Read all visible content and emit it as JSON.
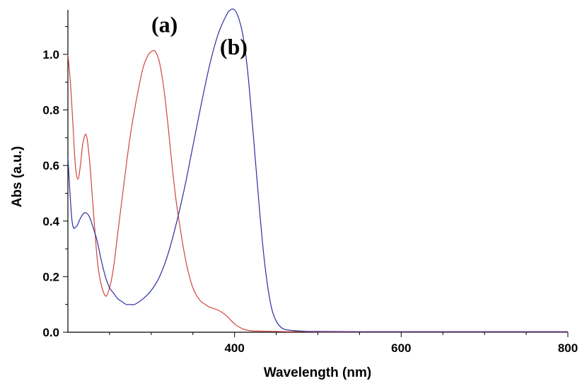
{
  "chart_data": {
    "type": "line",
    "xlabel": "Wavelength (nm)",
    "ylabel": "Abs (a.u.)",
    "xlim": [
      200,
      800
    ],
    "ylim": [
      0,
      1.16
    ],
    "xticks": [
      "400",
      "600",
      "800"
    ],
    "yticks": [
      "0.0",
      "0.2",
      "0.4",
      "0.6",
      "0.8",
      "1.0"
    ],
    "grid": false,
    "annotations": [
      {
        "text": "(a)",
        "x": 316,
        "y": 1.08
      },
      {
        "text": "(b)",
        "x": 399,
        "y": 1.0
      }
    ],
    "series": [
      {
        "color": "#d0453a",
        "x": [
          200,
          203,
          206,
          209,
          212,
          215,
          218,
          222,
          226,
          229,
          232,
          235,
          238,
          242,
          246,
          250,
          253,
          256,
          260,
          265,
          270,
          275,
          280,
          285,
          290,
          295,
          300,
          305,
          310,
          315,
          320,
          325,
          330,
          335,
          340,
          345,
          350,
          355,
          360,
          365,
          370,
          380,
          390,
          400,
          410,
          420,
          430,
          440,
          450,
          460,
          470,
          480,
          500,
          550,
          600,
          650,
          700,
          750,
          800
        ],
        "y": [
          1.0,
          0.9,
          0.75,
          0.6,
          0.55,
          0.6,
          0.68,
          0.71,
          0.62,
          0.5,
          0.38,
          0.27,
          0.2,
          0.15,
          0.13,
          0.16,
          0.2,
          0.26,
          0.36,
          0.48,
          0.6,
          0.71,
          0.8,
          0.88,
          0.95,
          0.99,
          1.01,
          1.01,
          0.97,
          0.88,
          0.75,
          0.6,
          0.47,
          0.37,
          0.28,
          0.21,
          0.16,
          0.13,
          0.11,
          0.1,
          0.09,
          0.08,
          0.06,
          0.03,
          0.012,
          0.005,
          0.004,
          0.003,
          0.003,
          0.002,
          0.002,
          0.002,
          0.001,
          0.001,
          0.001,
          0.001,
          0.001,
          0.001,
          0.001
        ]
      },
      {
        "color": "#2b2fa0",
        "x": [
          200,
          205,
          210,
          215,
          220,
          225,
          230,
          235,
          240,
          245,
          250,
          255,
          260,
          265,
          270,
          275,
          280,
          290,
          300,
          310,
          320,
          330,
          340,
          350,
          360,
          370,
          380,
          390,
          395,
          400,
          405,
          410,
          415,
          420,
          425,
          430,
          435,
          440,
          445,
          450,
          455,
          460,
          470,
          480,
          490,
          500,
          550,
          600,
          650,
          700,
          750,
          800
        ],
        "y": [
          0.63,
          0.4,
          0.38,
          0.41,
          0.43,
          0.42,
          0.38,
          0.33,
          0.26,
          0.2,
          0.16,
          0.14,
          0.12,
          0.11,
          0.1,
          0.1,
          0.1,
          0.12,
          0.15,
          0.2,
          0.28,
          0.39,
          0.52,
          0.67,
          0.82,
          0.96,
          1.07,
          1.14,
          1.16,
          1.16,
          1.13,
          1.07,
          0.96,
          0.8,
          0.62,
          0.44,
          0.28,
          0.16,
          0.08,
          0.04,
          0.02,
          0.01,
          0.006,
          0.004,
          0.003,
          0.003,
          0.002,
          0.002,
          0.002,
          0.002,
          0.002,
          0.002
        ]
      }
    ]
  }
}
